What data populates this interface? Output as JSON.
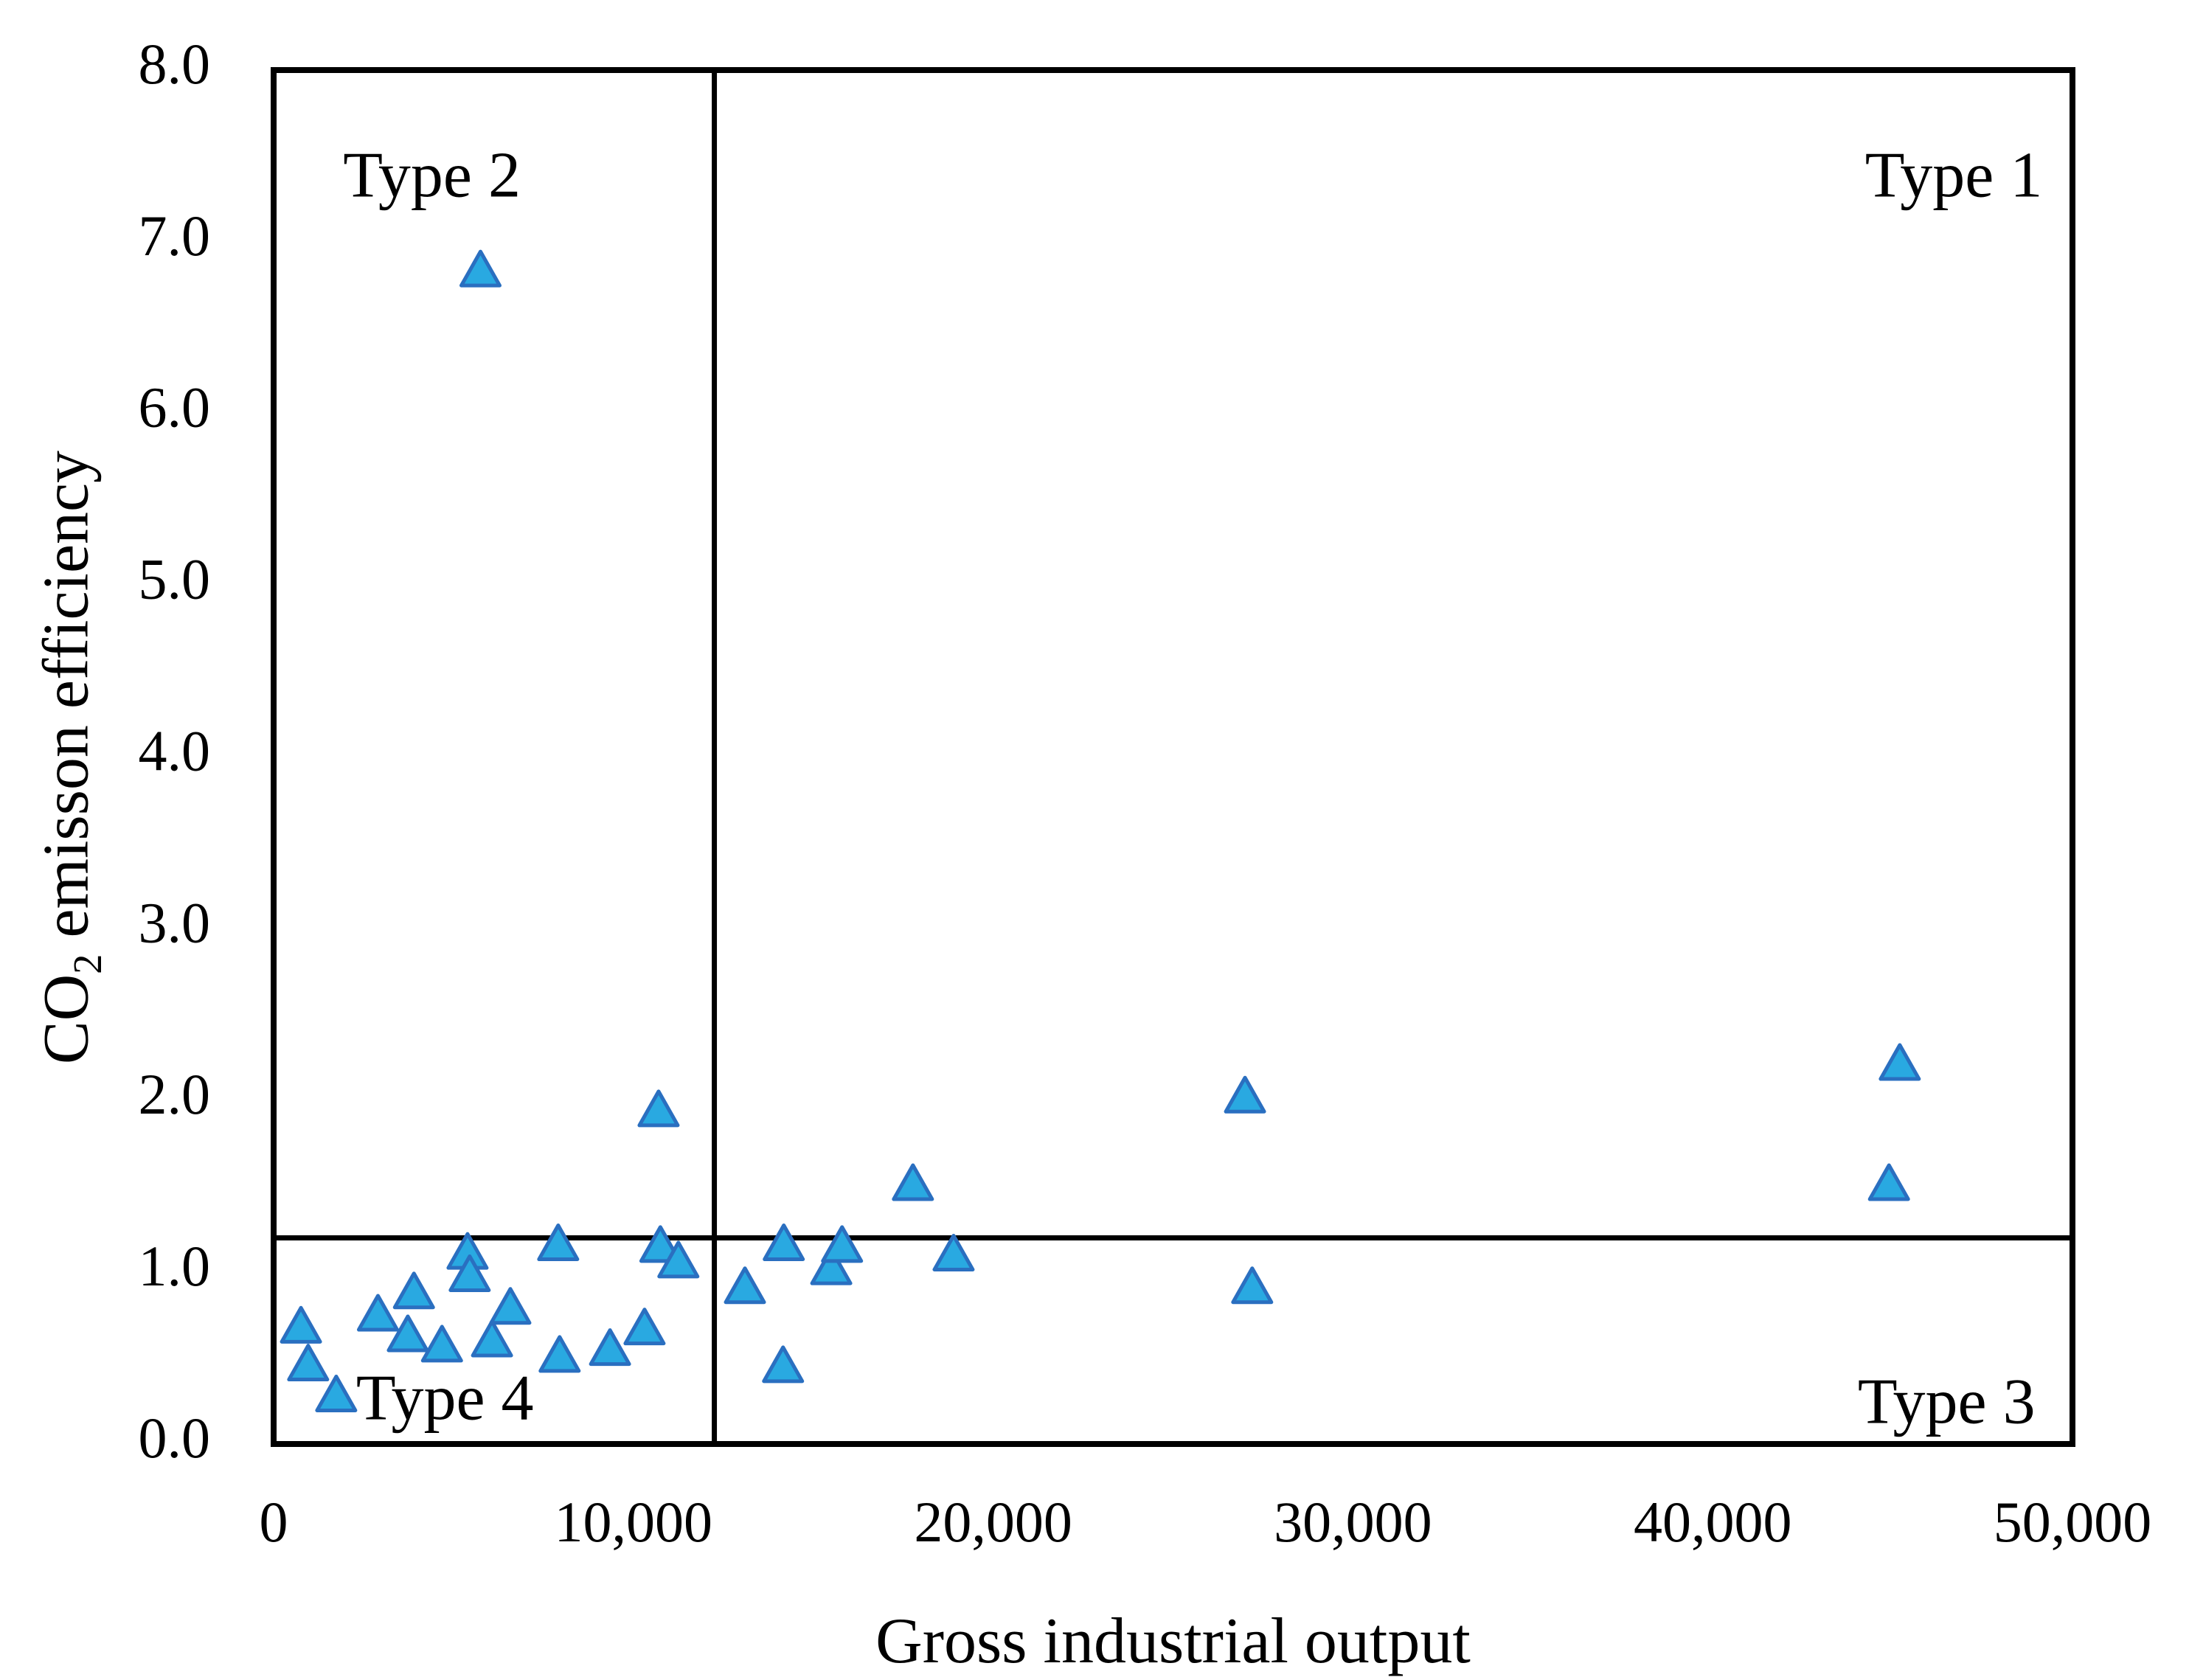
{
  "figure": {
    "xlabel": "Gross industrial output",
    "ylabel_prefix": "CO",
    "ylabel_sub": "2",
    "ylabel_suffix": " emisson efficiency"
  },
  "chart_data": {
    "type": "scatter",
    "marker": "triangle-up",
    "title": "",
    "xlabel": "Gross industrial output",
    "ylabel": "CO2 emisson efficiency",
    "xlim": [
      0,
      50000
    ],
    "ylim": [
      0,
      8
    ],
    "grid": false,
    "legend": "none",
    "x_tick_values": [
      0,
      10000,
      20000,
      30000,
      40000,
      50000
    ],
    "x_tick_labels": [
      "0",
      "10,000",
      "20,000",
      "30,000",
      "40,000",
      "50,000"
    ],
    "y_tick_values": [
      0,
      1,
      2,
      3,
      4,
      5,
      6,
      7,
      8
    ],
    "y_tick_labels": [
      "0.0",
      "1.0",
      "2.0",
      "3.0",
      "4.0",
      "5.0",
      "6.0",
      "7.0",
      "8.0"
    ],
    "quadrant_divider_x": 12250,
    "quadrant_divider_y": 1.2,
    "quadrant_labels": [
      {
        "text": "Type 2",
        "x": 4400,
        "y": 7.35
      },
      {
        "text": "Type 1",
        "x": 46700,
        "y": 7.35
      },
      {
        "text": "Type 4",
        "x": 4760,
        "y": 0.23
      },
      {
        "text": "Type 3",
        "x": 46500,
        "y": 0.21
      }
    ],
    "points": [
      [
        760,
        0.69
      ],
      [
        960,
        0.47
      ],
      [
        1740,
        0.29
      ],
      [
        2900,
        0.76
      ],
      [
        3900,
        0.89
      ],
      [
        3730,
        0.64
      ],
      [
        4680,
        0.58
      ],
      [
        5390,
        1.12
      ],
      [
        5450,
        0.99
      ],
      [
        6070,
        0.61
      ],
      [
        6580,
        0.8
      ],
      [
        7910,
        1.17
      ],
      [
        7950,
        0.52
      ],
      [
        9350,
        0.56
      ],
      [
        10310,
        0.68
      ],
      [
        10700,
        1.95
      ],
      [
        10750,
        1.16
      ],
      [
        11250,
        1.07
      ],
      [
        13100,
        0.92
      ],
      [
        14180,
        1.17
      ],
      [
        14160,
        0.46
      ],
      [
        15500,
        1.03
      ],
      [
        15800,
        1.16
      ],
      [
        17770,
        1.52
      ],
      [
        18900,
        1.11
      ],
      [
        27000,
        2.03
      ],
      [
        27200,
        0.92
      ],
      [
        44900,
        1.52
      ],
      [
        45200,
        2.22
      ],
      [
        5750,
        6.84
      ]
    ],
    "colors": {
      "marker_fill": "#29a9e1",
      "marker_stroke": "#2a6fc0",
      "axis": "#000000"
    }
  }
}
